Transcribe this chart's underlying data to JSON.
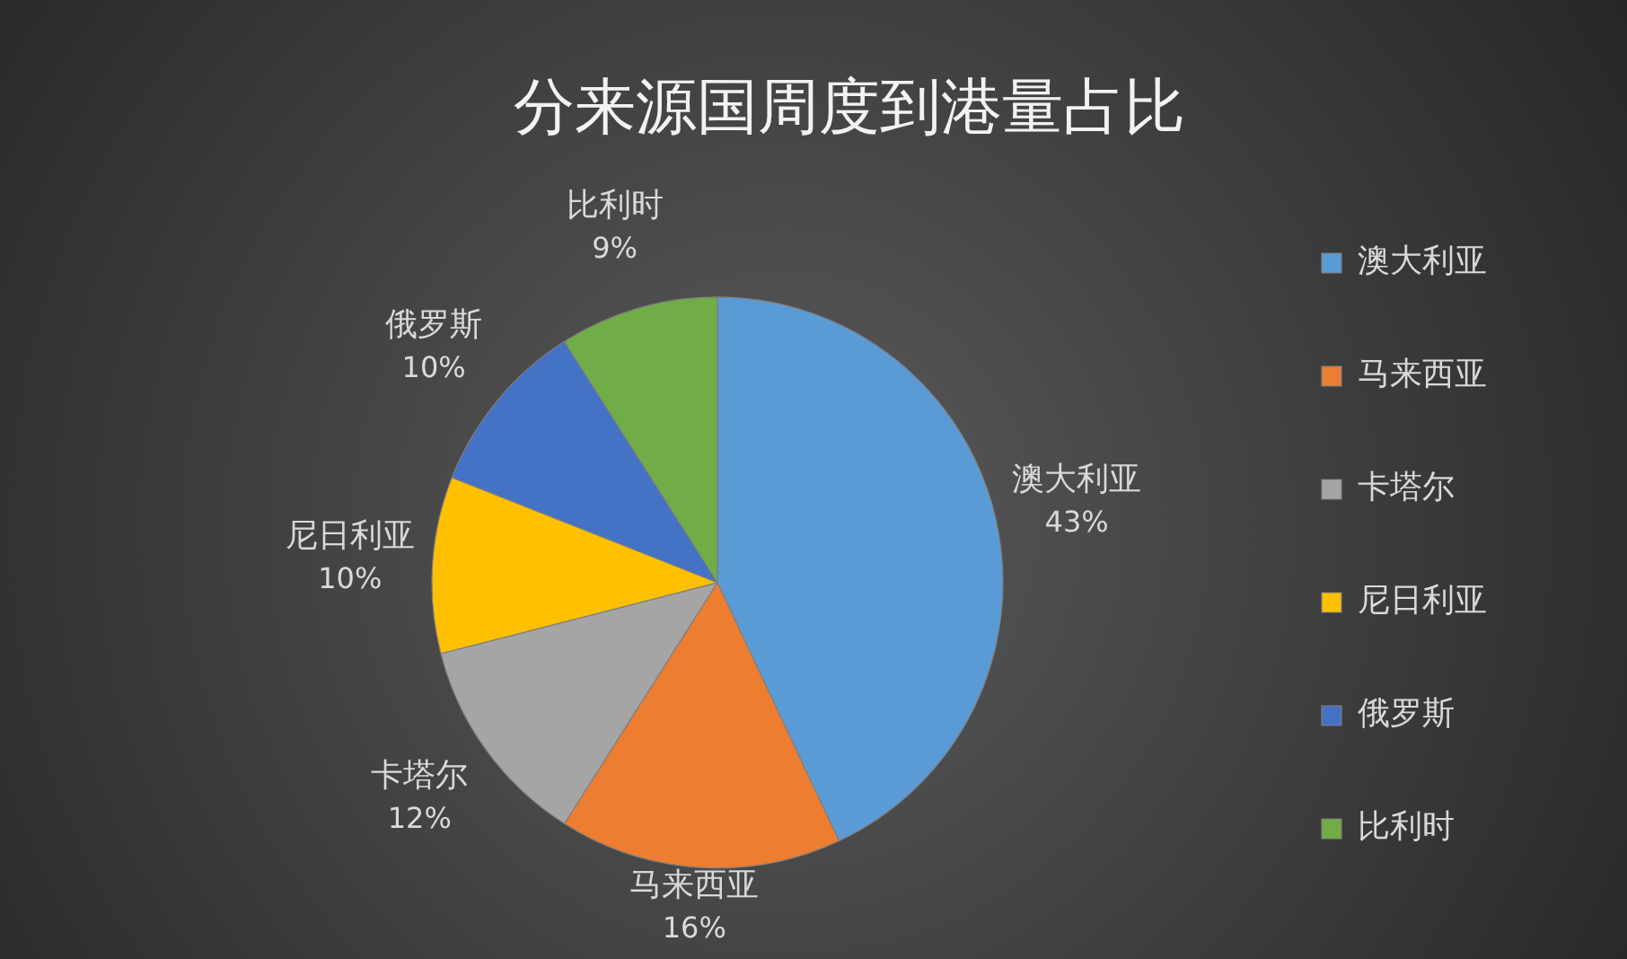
{
  "chart_data": {
    "type": "pie",
    "title": "分来源国周度到港量占比",
    "categories": [
      "澳大利亚",
      "马来西亚",
      "卡塔尔",
      "尼日利亚",
      "俄罗斯",
      "比利时"
    ],
    "values": [
      43,
      16,
      12,
      10,
      10,
      9
    ],
    "colors": [
      "#5b9bd5",
      "#ed7d31",
      "#a5a5a5",
      "#ffc000",
      "#4472c4",
      "#70ad47"
    ],
    "value_labels": [
      "43%",
      "16%",
      "12%",
      "10%",
      "10%",
      "9%"
    ],
    "legend": "right"
  }
}
